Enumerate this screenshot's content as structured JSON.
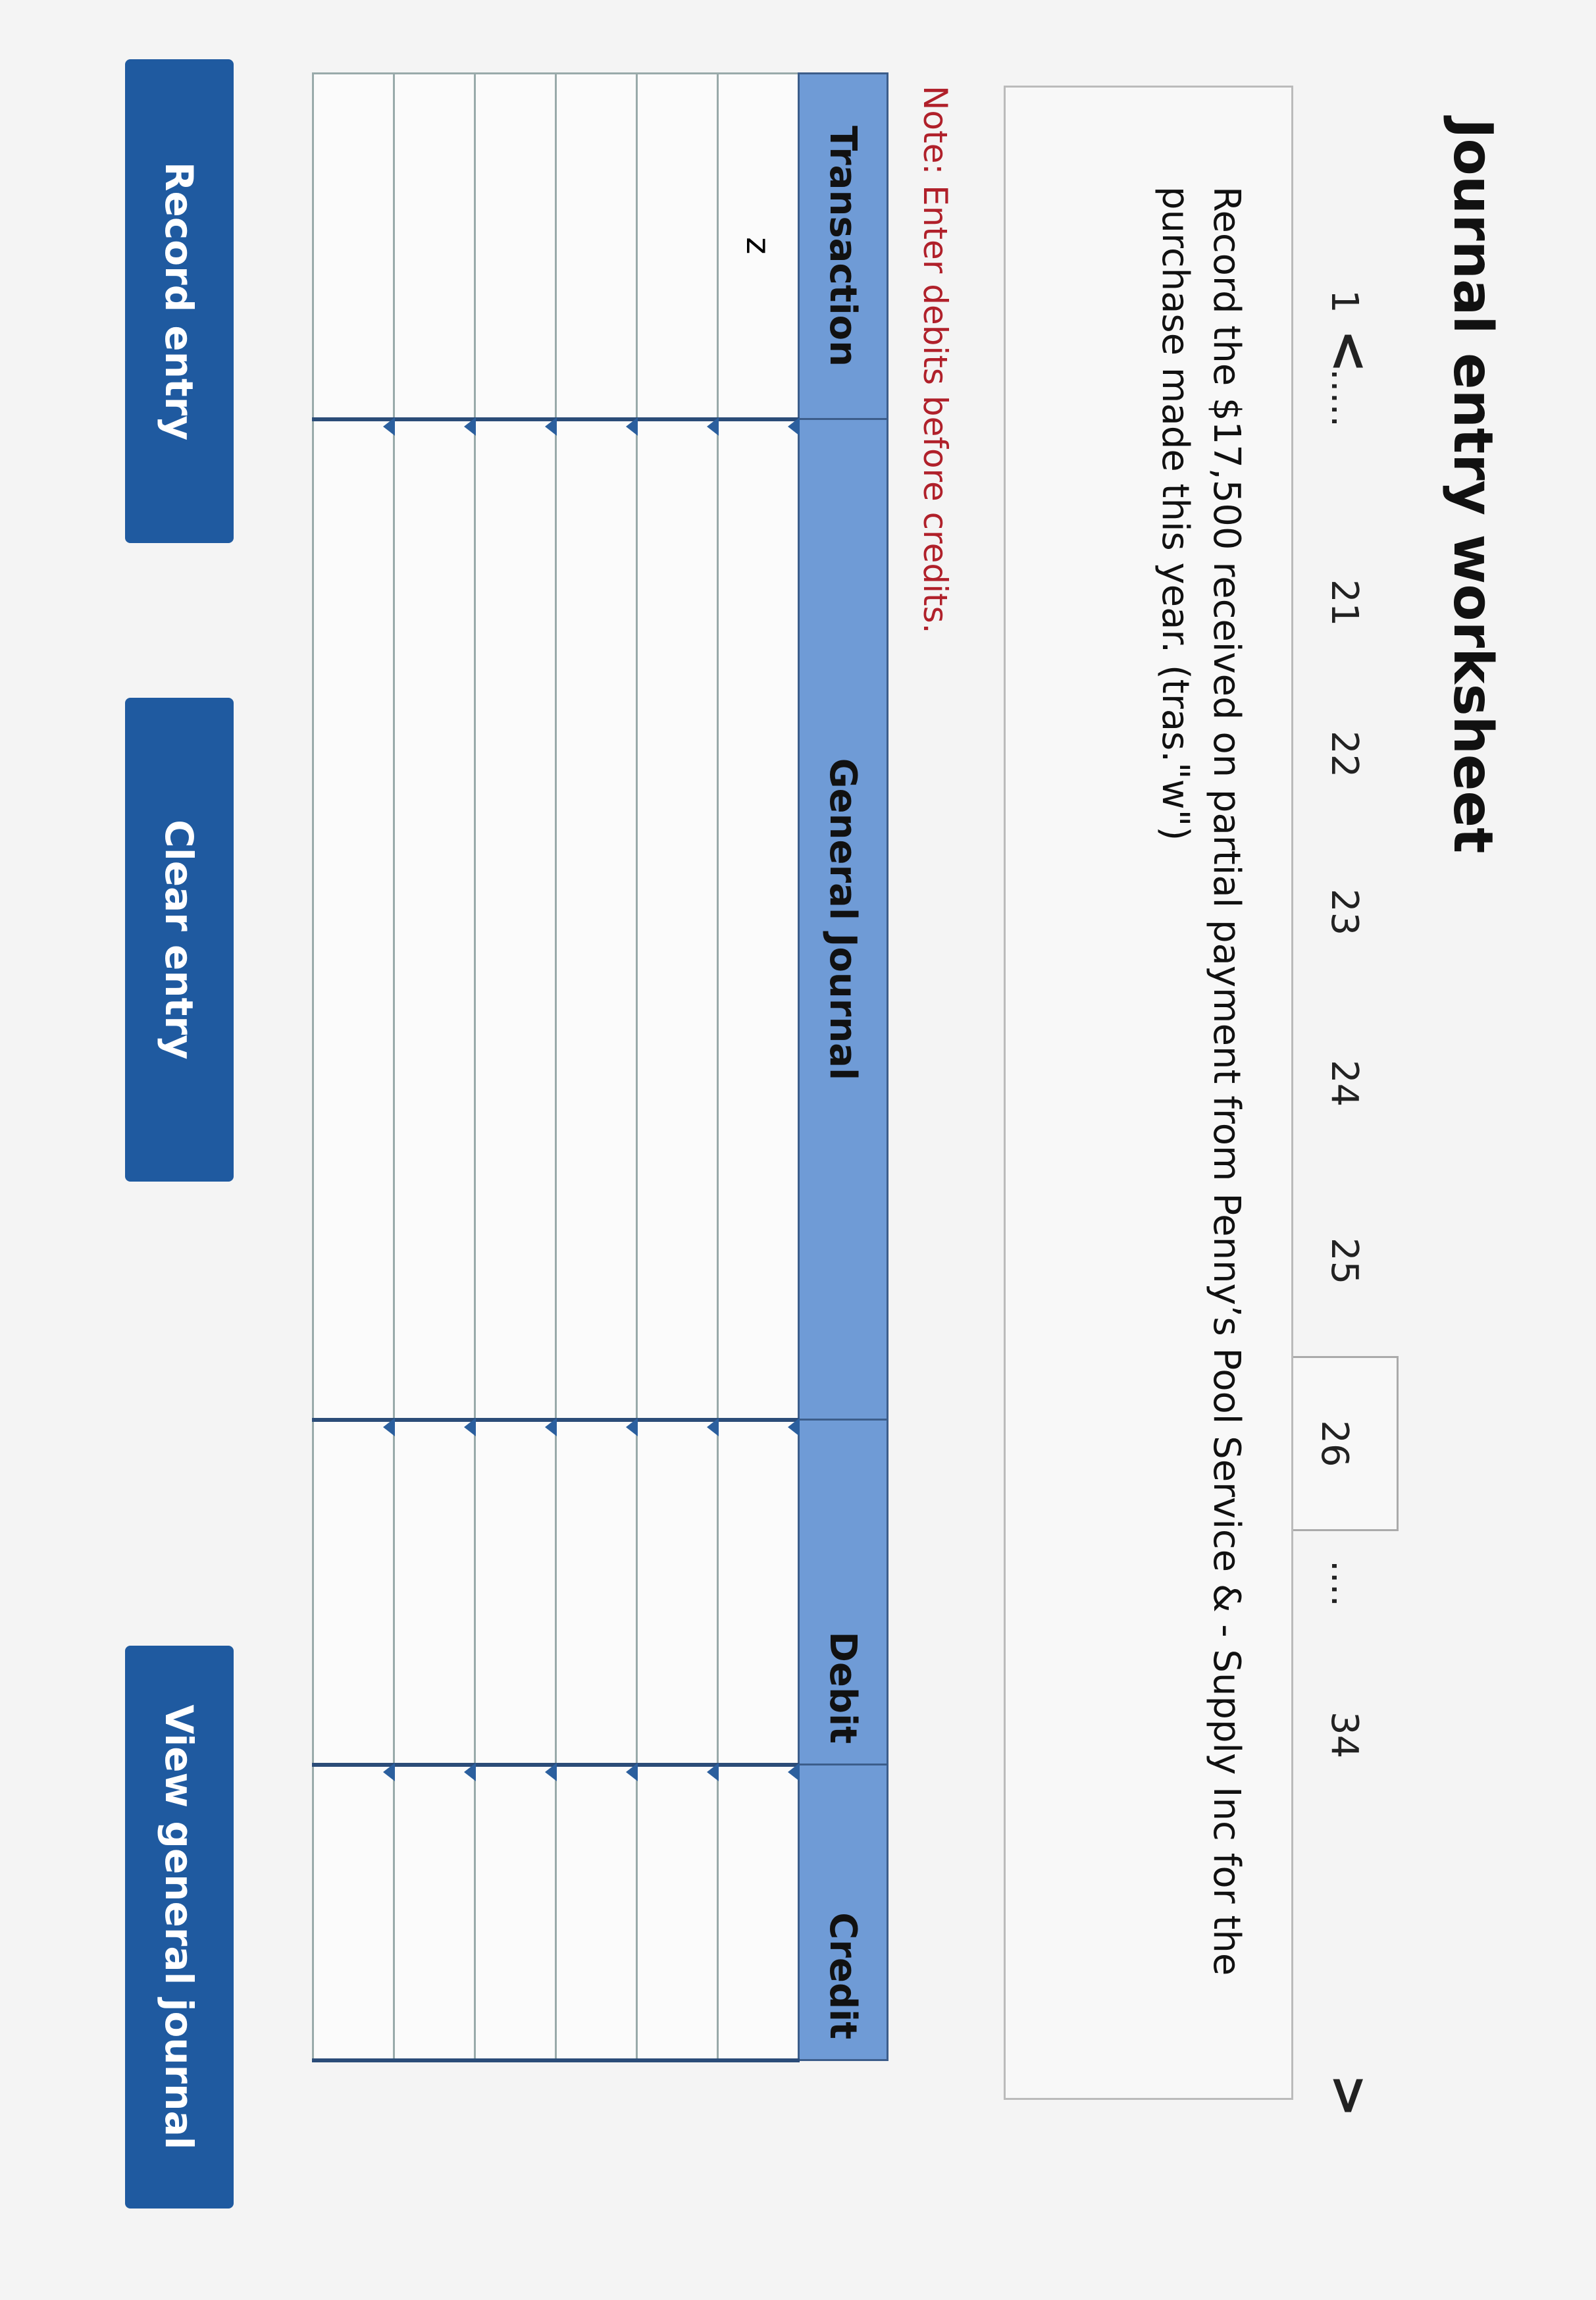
{
  "title": "Journal entry worksheet",
  "pager": {
    "prev": "<",
    "next": ">",
    "pages": [
      "1",
      ".....",
      "21",
      "22",
      "23",
      "24",
      "25",
      "26",
      "....",
      "34"
    ],
    "active": "26"
  },
  "description": "Record the $17,500 received on partial payment from Penny’s Pool Service & - Supply Inc for the purchase made this year. (tras.\"w\")",
  "note": "Note: Enter debits before credits.",
  "table": {
    "headers": [
      "Transaction",
      "General Journal",
      "Debit",
      "Credit"
    ],
    "rows": [
      [
        "z",
        "",
        "",
        ""
      ],
      [
        "",
        "",
        "",
        ""
      ],
      [
        "",
        "",
        "",
        ""
      ],
      [
        "",
        "",
        "",
        ""
      ],
      [
        "",
        "",
        "",
        ""
      ],
      [
        "",
        "",
        "",
        ""
      ]
    ]
  },
  "buttons": {
    "record": "Record entry",
    "clear": "Clear entry",
    "view": "View general journal"
  },
  "colors": {
    "button": "#1f5aa0",
    "header": "#6f9bd6",
    "note": "#b0202a"
  }
}
